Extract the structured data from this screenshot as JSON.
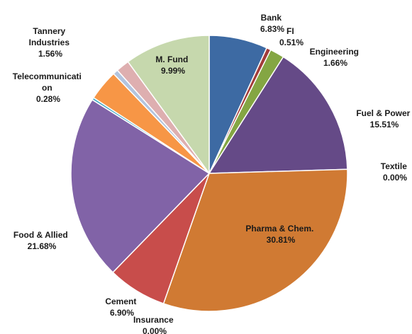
{
  "chart_data": {
    "type": "pie",
    "title": "",
    "start_angle_deg": 0,
    "direction": "clockwise",
    "legend": "none",
    "slices": [
      {
        "name": "Bank",
        "value": 6.83,
        "label": "6.83%",
        "color": "#3d6aa3"
      },
      {
        "name": "FI",
        "value": 0.51,
        "label": "0.51%",
        "color": "#a23c3a"
      },
      {
        "name": "Engineering",
        "value": 1.66,
        "label": "1.66%",
        "color": "#84a643"
      },
      {
        "name": "Fuel & Power",
        "value": 15.51,
        "label": "15.51%",
        "color": "#654a87"
      },
      {
        "name": "Textile",
        "value": 0.0,
        "label": "0.00%",
        "color": "#3c97b0"
      },
      {
        "name": "Pharma & Chem.",
        "value": 30.81,
        "label": "30.81%",
        "color": "#d07a33"
      },
      {
        "name": "Insurance",
        "value": 0.0,
        "label": "0.00%",
        "color": "#4e7cbf"
      },
      {
        "name": "Cement",
        "value": 6.9,
        "label": "6.90%",
        "color": "#c84d4b"
      },
      {
        "name": "Food & Allied",
        "value": 21.68,
        "label": "21.68%",
        "color": "#8163a7"
      },
      {
        "name": "Telecommunicati on",
        "value": 0.28,
        "label": "0.28%",
        "color": "#4bacc6"
      },
      {
        "name": "",
        "value": 3.6,
        "label": "",
        "color": "#f79646"
      },
      {
        "name": "",
        "value": 0.6,
        "label": "",
        "color": "#b3c4de"
      },
      {
        "name": "Tannery Industries",
        "value": 1.56,
        "label": "1.56%",
        "color": "#deafb0"
      },
      {
        "name": "M. Fund",
        "value": 9.99,
        "label": "9.99%",
        "color": "#c6d8ad"
      }
    ]
  }
}
